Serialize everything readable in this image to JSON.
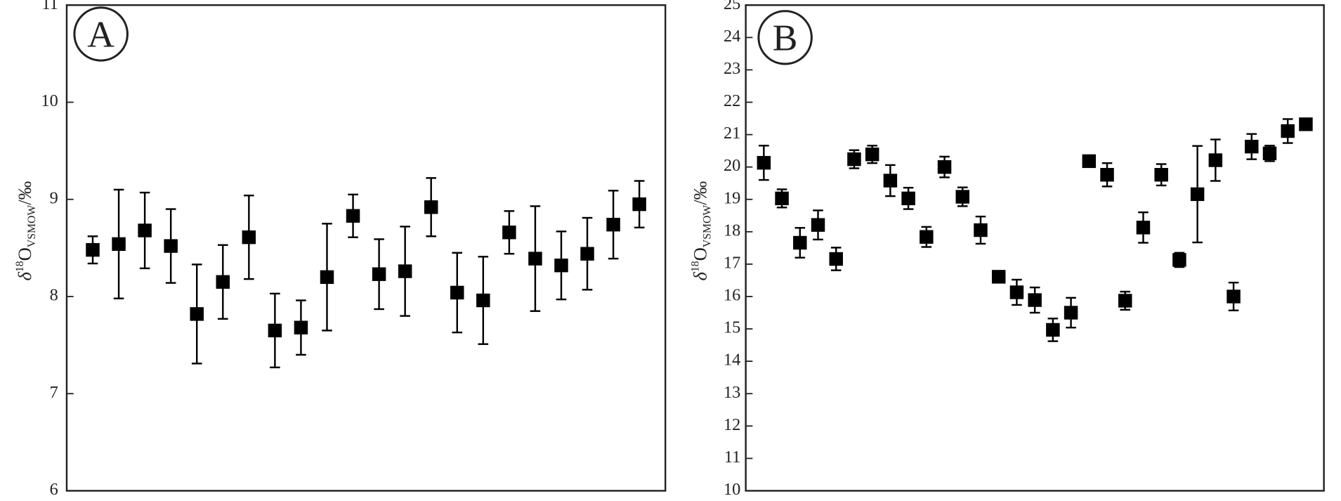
{
  "chart_data": [
    {
      "type": "errorbar",
      "panel_label": "A",
      "y_label_parts": [
        "δ",
        "18",
        "O",
        "VSMOW",
        "/‰"
      ],
      "ylim": [
        6,
        11
      ],
      "yticks": [
        6,
        7,
        8,
        9,
        10,
        11
      ],
      "color": "#000000",
      "values": [
        8.48,
        8.54,
        8.68,
        8.52,
        7.82,
        8.15,
        8.61,
        7.65,
        7.68,
        8.2,
        8.83,
        8.23,
        8.26,
        8.92,
        8.04,
        7.96,
        8.66,
        8.39,
        8.32,
        8.44,
        8.74,
        8.95
      ],
      "errors": [
        0.14,
        0.56,
        0.39,
        0.38,
        0.51,
        0.38,
        0.43,
        0.38,
        0.28,
        0.55,
        0.22,
        0.36,
        0.46,
        0.3,
        0.41,
        0.45,
        0.22,
        0.54,
        0.35,
        0.37,
        0.35,
        0.24
      ]
    },
    {
      "type": "errorbar",
      "panel_label": "B",
      "y_label_parts": [
        "δ",
        "18",
        "O",
        "VSMOW",
        "/‰"
      ],
      "ylim": [
        10,
        25
      ],
      "yticks": [
        10,
        11,
        12,
        13,
        14,
        15,
        16,
        17,
        18,
        19,
        20,
        21,
        22,
        23,
        24,
        25
      ],
      "color": "#000000",
      "values": [
        20.13,
        19.03,
        17.66,
        18.21,
        17.16,
        20.24,
        20.39,
        19.58,
        19.03,
        17.84,
        20.0,
        19.08,
        18.05,
        16.61,
        16.13,
        15.89,
        14.97,
        15.5,
        20.18,
        19.76,
        15.87,
        18.13,
        19.76,
        17.13,
        19.16,
        20.21,
        16.0,
        20.63,
        20.42,
        21.11,
        21.32
      ],
      "errors": [
        0.53,
        0.28,
        0.46,
        0.45,
        0.35,
        0.28,
        0.27,
        0.48,
        0.33,
        0.31,
        0.32,
        0.29,
        0.42,
        0.17,
        0.39,
        0.39,
        0.35,
        0.46,
        0.18,
        0.36,
        0.28,
        0.47,
        0.33,
        0.22,
        1.49,
        0.64,
        0.43,
        0.39,
        0.24,
        0.37,
        0.15
      ]
    }
  ]
}
